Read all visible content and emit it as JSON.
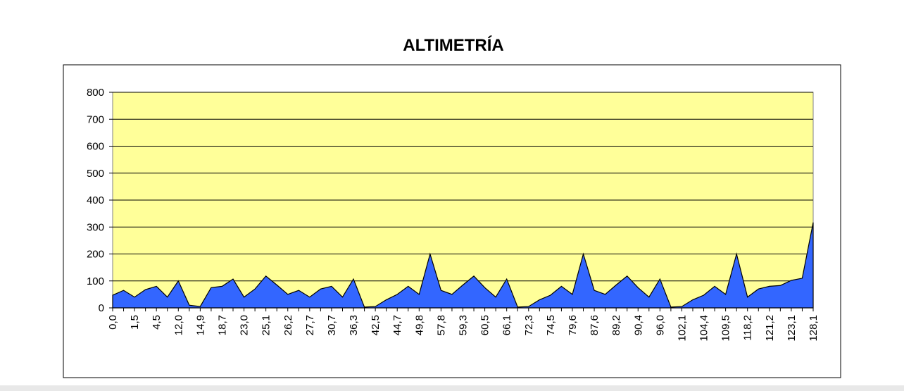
{
  "chart_data": {
    "type": "area",
    "title": "ALTIMETRÍA",
    "categories": [
      "0,0",
      null,
      "1,5",
      null,
      "4,5",
      null,
      "12,0",
      null,
      "14,9",
      null,
      "18,7",
      null,
      "23,0",
      null,
      "25,1",
      null,
      "26,2",
      null,
      "27,7",
      null,
      "30,7",
      null,
      "36,3",
      null,
      "42,5",
      null,
      "44,7",
      null,
      "49,8",
      null,
      "57,8",
      null,
      "59,3",
      null,
      "60,5",
      null,
      "66,1",
      null,
      "72,3",
      null,
      "74,5",
      null,
      "79,6",
      null,
      "87,6",
      null,
      "89,2",
      null,
      "90,4",
      null,
      "96,0",
      null,
      "102,1",
      null,
      "104,4",
      null,
      "109,5",
      null,
      "118,2",
      null,
      "121,2",
      null,
      "123,1",
      null,
      "128,1"
    ],
    "values": [
      47,
      65,
      40,
      68,
      80,
      40,
      100,
      10,
      5,
      75,
      80,
      107,
      40,
      70,
      118,
      85,
      50,
      65,
      40,
      70,
      80,
      40,
      107,
      3,
      5,
      30,
      50,
      80,
      50,
      200,
      65,
      50,
      85,
      118,
      75,
      40,
      107,
      3,
      5,
      30,
      47,
      80,
      50,
      200,
      65,
      50,
      85,
      118,
      75,
      40,
      107,
      3,
      5,
      30,
      47,
      80,
      50,
      200,
      40,
      70,
      80,
      83,
      102,
      110,
      317
    ],
    "color": "#3366ff",
    "plot_background": "#ffff99",
    "ylim": [
      0,
      800
    ],
    "yticks": [
      0,
      100,
      200,
      300,
      400,
      500,
      600,
      700,
      800
    ],
    "grid": true
  }
}
